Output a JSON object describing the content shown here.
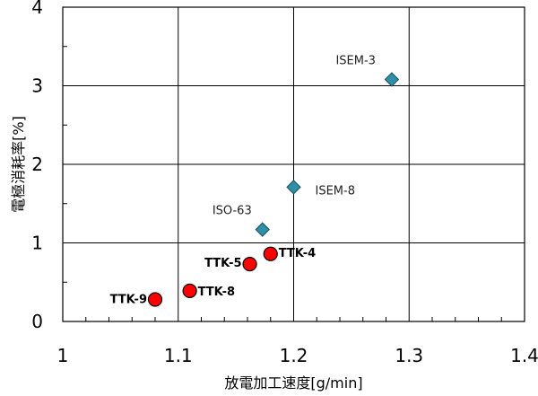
{
  "chart_data": {
    "type": "scatter",
    "title": "",
    "xlabel": "放電加工速度[g/min]",
    "ylabel": "電極消耗率[%]",
    "xlim": [
      1.0,
      1.4
    ],
    "ylim": [
      0,
      4
    ],
    "x_ticks": [
      "1",
      "1.1",
      "1.2",
      "1.3",
      "1.4"
    ],
    "y_ticks": [
      "0",
      "1",
      "2",
      "3",
      "4"
    ],
    "grid": true,
    "series": [
      {
        "marker": "diamond",
        "color": "#2e8fa8",
        "points": [
          {
            "label": "ISEM-3",
            "x": 1.285,
            "y": 3.08
          },
          {
            "label": "ISEM-8",
            "x": 1.2,
            "y": 1.71
          },
          {
            "label": "ISO-63",
            "x": 1.173,
            "y": 1.17
          }
        ]
      },
      {
        "marker": "circle",
        "color": "#ff0000",
        "points": [
          {
            "label": "TTK-4",
            "x": 1.18,
            "y": 0.86
          },
          {
            "label": "TTK-5",
            "x": 1.162,
            "y": 0.73
          },
          {
            "label": "TTK-8",
            "x": 1.11,
            "y": 0.39
          },
          {
            "label": "TTK-9",
            "x": 1.08,
            "y": 0.28
          }
        ]
      }
    ]
  }
}
